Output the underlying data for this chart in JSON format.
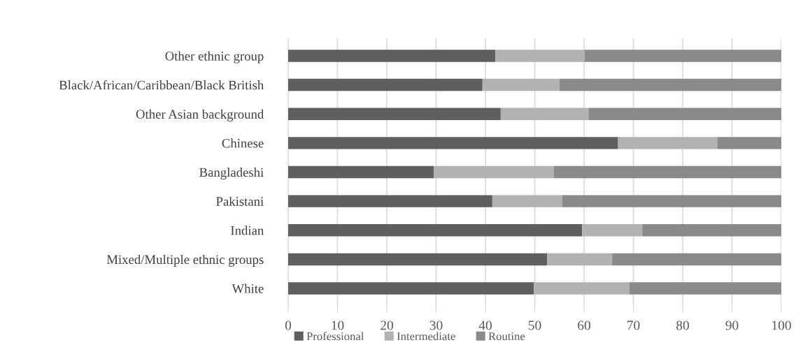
{
  "chart_data": {
    "type": "bar",
    "orientation": "horizontal",
    "stacked": true,
    "categories": [
      "Other ethnic group",
      "Black/African/Caribbean/Black British",
      "Other Asian background",
      "Chinese",
      "Bangladeshi",
      "Pakistani",
      "Indian",
      "Mixed/Multiple ethnic groups",
      "White"
    ],
    "series": [
      {
        "name": "Professional",
        "color": "#5f5f5f",
        "values": [
          42.0,
          39.4,
          43.1,
          66.9,
          29.5,
          41.4,
          59.6,
          52.5,
          49.8
        ]
      },
      {
        "name": "Intermediate",
        "color": "#b2b2b2",
        "values": [
          18.1,
          15.6,
          17.8,
          20.1,
          24.4,
          14.2,
          12.2,
          13.2,
          19.4
        ]
      },
      {
        "name": "Routine",
        "color": "#8a8a8a",
        "values": [
          39.9,
          45.0,
          39.1,
          13.0,
          46.1,
          44.4,
          28.2,
          34.3,
          30.8
        ]
      }
    ],
    "xlim": [
      0,
      100
    ],
    "xticks": [
      0,
      10,
      20,
      30,
      40,
      50,
      60,
      70,
      80,
      90,
      100
    ],
    "grid": "x",
    "legend": "bottom"
  }
}
